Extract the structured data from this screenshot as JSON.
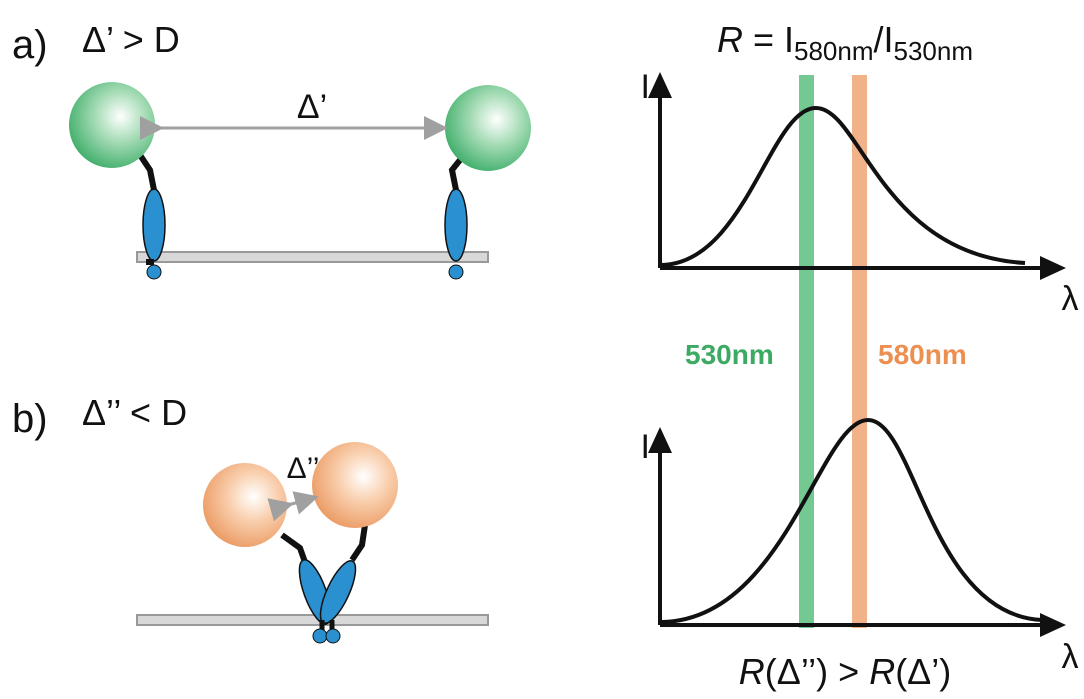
{
  "panel_a": {
    "label": "a)",
    "condition": "Δ’ > D",
    "distance": "Δ’"
  },
  "panel_b": {
    "label": "b)",
    "condition": "Δ’’ < D",
    "distance": "Δ’’"
  },
  "spectra": {
    "ratio": {
      "symbol": "R",
      "equals": " = I",
      "numerator": "580nm",
      "slash": "/I",
      "denominator": "530nm"
    },
    "top_axis": {
      "y_label": "I",
      "x_label": "λ"
    },
    "bottom_axis": {
      "y_label": "I",
      "x_label": "λ"
    },
    "band_green": "530nm",
    "band_orange": "580nm",
    "comparison": {
      "left_symbol": "R",
      "left_arg": "(Δ’’) > ",
      "right_symbol": "R",
      "right_arg": "(Δ’)"
    }
  }
}
